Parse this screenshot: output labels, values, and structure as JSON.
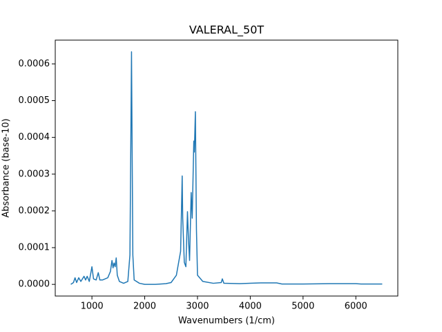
{
  "chart_data": {
    "type": "line",
    "title": "VALERAL_50T",
    "xlabel": "Wavenumbers (1/cm)",
    "ylabel": "Absorbance (base-10)",
    "color": "#1f77b4",
    "x": [
      600,
      650,
      680,
      710,
      750,
      790,
      850,
      880,
      910,
      950,
      1000,
      1030,
      1080,
      1120,
      1150,
      1200,
      1250,
      1300,
      1350,
      1380,
      1400,
      1420,
      1440,
      1460,
      1480,
      1520,
      1600,
      1680,
      1720,
      1740,
      1750,
      1760,
      1775,
      1800,
      1900,
      2000,
      2200,
      2400,
      2500,
      2600,
      2680,
      2710,
      2720,
      2750,
      2780,
      2810,
      2830,
      2850,
      2880,
      2900,
      2930,
      2940,
      2960,
      2980,
      3000,
      3100,
      3300,
      3450,
      3470,
      3500,
      3800,
      4000,
      4200,
      4500,
      4600,
      5000,
      5500,
      6000,
      6100,
      6500
    ],
    "values": [
      0,
      5e-06,
      1.8e-05,
      5e-06,
      1.8e-05,
      8e-06,
      2.2e-05,
      1.2e-05,
      2.2e-05,
      8e-06,
      4.8e-05,
      1.5e-05,
      1.2e-05,
      3.2e-05,
      1.2e-05,
      1.2e-05,
      1.5e-05,
      1.8e-05,
      3.5e-05,
      6.5e-05,
      4.5e-05,
      5.8e-05,
      4.8e-05,
      7.2e-05,
      2.5e-05,
      8e-06,
      3e-06,
      8e-06,
      8e-05,
      0.00045,
      0.000633,
      0.0004,
      8e-05,
      1.2e-05,
      3e-06,
      0,
      0,
      2e-06,
      5e-06,
      2.5e-05,
      9e-05,
      0.000295,
      0.00018,
      6e-05,
      4.8e-05,
      0.000198,
      0.00012,
      6.5e-05,
      0.00025,
      0.00018,
      0.00039,
      0.00036,
      0.00047,
      0.00015,
      2.5e-05,
      8e-06,
      3e-06,
      5e-06,
      1.5e-05,
      3e-06,
      2e-06,
      3e-06,
      4e-06,
      4e-06,
      1e-06,
      1e-06,
      2e-06,
      2e-06,
      1e-06,
      1e-06
    ],
    "xlim": [
      305,
      6795
    ],
    "xticks": [
      1000,
      2000,
      3000,
      4000,
      5000,
      6000
    ],
    "ylim": [
      -3.17e-05,
      0.0006647
    ],
    "yticks": [
      {
        "value": 0,
        "label": "0.0000"
      },
      {
        "value": 0.0001,
        "label": "0.0001"
      },
      {
        "value": 0.0002,
        "label": "0.0002"
      },
      {
        "value": 0.0003,
        "label": "0.0003"
      },
      {
        "value": 0.0004,
        "label": "0.0004"
      },
      {
        "value": 0.0005,
        "label": "0.0005"
      },
      {
        "value": 0.0006,
        "label": "0.0006"
      }
    ]
  }
}
